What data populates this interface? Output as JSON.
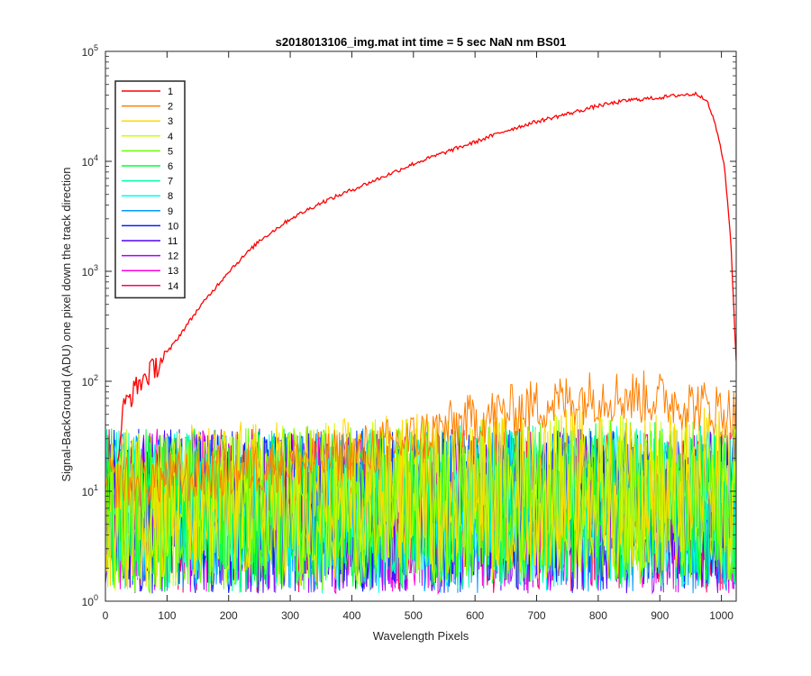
{
  "chart_data": {
    "type": "line",
    "title": "s2018013106_img.mat int time = 5 sec  NaN nm BS01",
    "xlabel": "Wavelength Pixels",
    "ylabel": "Signal-BackGround (ADU) one pixel down the track direction",
    "xlim": [
      0,
      1024
    ],
    "ylim": [
      1,
      100000
    ],
    "yscale": "log",
    "xticks": [
      "0",
      "100",
      "200",
      "300",
      "400",
      "500",
      "600",
      "700",
      "800",
      "900",
      "1000"
    ],
    "yticks": [
      {
        "base": "10",
        "exp": "0"
      },
      {
        "base": "10",
        "exp": "1"
      },
      {
        "base": "10",
        "exp": "2"
      },
      {
        "base": "10",
        "exp": "3"
      },
      {
        "base": "10",
        "exp": "4"
      },
      {
        "base": "10",
        "exp": "5"
      }
    ],
    "grid": false,
    "legend_position": "top-left",
    "series": [
      {
        "name": "1",
        "color": "#ff0000",
        "x": [
          20,
          30,
          50,
          100,
          150,
          200,
          250,
          300,
          350,
          400,
          450,
          500,
          550,
          600,
          650,
          700,
          750,
          800,
          850,
          900,
          930,
          960,
          975,
          990,
          1005,
          1015,
          1024
        ],
        "y": [
          20,
          60,
          90,
          180,
          450,
          1000,
          1900,
          3000,
          4200,
          5500,
          7200,
          9500,
          12000,
          15000,
          19000,
          23000,
          27000,
          32000,
          36000,
          38000,
          40000,
          41000,
          37000,
          22000,
          9000,
          2000,
          150
        ]
      },
      {
        "name": "2",
        "color": "#ff7f00",
        "x": [
          0,
          100,
          200,
          300,
          400,
          500,
          600,
          700,
          800,
          900,
          1000,
          1024
        ],
        "y": [
          12,
          13,
          15,
          18,
          22,
          30,
          45,
          60,
          75,
          70,
          55,
          50
        ]
      },
      {
        "name": "3",
        "color": "#ffd700",
        "x": [
          0,
          200,
          400,
          600,
          800,
          1000,
          1024
        ],
        "y": [
          11,
          12,
          13,
          15,
          17,
          16,
          15
        ]
      },
      {
        "name": "4",
        "color": "#ccff00",
        "x": [
          0,
          200,
          400,
          600,
          800,
          1000,
          1024
        ],
        "y": [
          10,
          11,
          12,
          13,
          14,
          13,
          13
        ]
      },
      {
        "name": "5",
        "color": "#66ff00",
        "x": [
          0,
          200,
          400,
          600,
          800,
          1000,
          1024
        ],
        "y": [
          10,
          10,
          11,
          12,
          12,
          12,
          12
        ]
      },
      {
        "name": "6",
        "color": "#00ff33",
        "x": [
          0,
          200,
          400,
          600,
          800,
          1000,
          1024
        ],
        "y": [
          10,
          10,
          11,
          11,
          12,
          11,
          11
        ]
      },
      {
        "name": "7",
        "color": "#00ffaa",
        "x": [
          0,
          200,
          400,
          600,
          800,
          1000,
          1024
        ],
        "y": [
          10,
          10,
          10,
          11,
          11,
          11,
          11
        ]
      },
      {
        "name": "8",
        "color": "#00ffee",
        "x": [
          0,
          200,
          400,
          600,
          800,
          1000,
          1024
        ],
        "y": [
          10,
          10,
          10,
          10,
          11,
          10,
          10
        ]
      },
      {
        "name": "9",
        "color": "#0099ff",
        "x": [
          0,
          200,
          400,
          600,
          800,
          1000,
          1024
        ],
        "y": [
          10,
          10,
          10,
          10,
          10,
          10,
          10
        ]
      },
      {
        "name": "10",
        "color": "#0022ff",
        "x": [
          0,
          200,
          400,
          600,
          800,
          1000,
          1024
        ],
        "y": [
          10,
          10,
          10,
          10,
          10,
          10,
          10
        ]
      },
      {
        "name": "11",
        "color": "#5500ff",
        "x": [
          0,
          200,
          400,
          600,
          800,
          1000,
          1024
        ],
        "y": [
          10,
          10,
          10,
          10,
          10,
          10,
          10
        ]
      },
      {
        "name": "12",
        "color": "#aa00ff",
        "x": [
          0,
          200,
          400,
          600,
          800,
          1000,
          1024
        ],
        "y": [
          10,
          10,
          10,
          10,
          10,
          10,
          10
        ]
      },
      {
        "name": "13",
        "color": "#ff00dd",
        "x": [
          0,
          200,
          400,
          600,
          800,
          1000,
          1024
        ],
        "y": [
          10,
          10,
          10,
          10,
          10,
          10,
          10
        ]
      },
      {
        "name": "14",
        "color": "#ff0066",
        "x": [
          0,
          200,
          400,
          600,
          800,
          1000,
          1024
        ],
        "y": [
          10,
          10,
          10,
          10,
          10,
          10,
          10
        ]
      }
    ]
  }
}
